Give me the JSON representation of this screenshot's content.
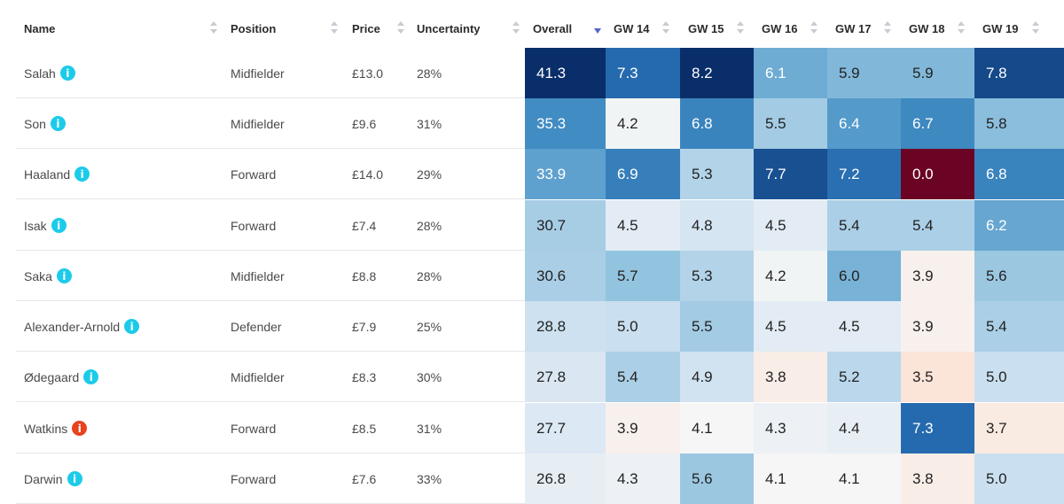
{
  "colors": {
    "info_ok": "#1ccbea",
    "info_alert": "#e8421e",
    "sort_active": "#5566cc"
  },
  "columns": {
    "name": "Name",
    "position": "Position",
    "price": "Price",
    "uncertainty": "Uncertainty",
    "overall": "Overall",
    "gw14": "GW 14",
    "gw15": "GW 15",
    "gw16": "GW 16",
    "gw17": "GW 17",
    "gw18": "GW 18",
    "gw19": "GW 19"
  },
  "sort": {
    "column": "overall",
    "direction": "descending"
  },
  "rows": [
    {
      "name": "Salah",
      "info": "i",
      "status": "ok",
      "position": "Midfielder",
      "price": "£13.0",
      "uncertainty": "28%",
      "overall": "41.3",
      "gw": [
        "7.3",
        "8.2",
        "6.1",
        "5.9",
        "5.9",
        "7.8"
      ]
    },
    {
      "name": "Son",
      "info": "i",
      "status": "ok",
      "position": "Midfielder",
      "price": "£9.6",
      "uncertainty": "31%",
      "overall": "35.3",
      "gw": [
        "4.2",
        "6.8",
        "5.5",
        "6.4",
        "6.7",
        "5.8"
      ]
    },
    {
      "name": "Haaland",
      "info": "i",
      "status": "ok",
      "position": "Forward",
      "price": "£14.0",
      "uncertainty": "29%",
      "overall": "33.9",
      "gw": [
        "6.9",
        "5.3",
        "7.7",
        "7.2",
        "0.0",
        "6.8"
      ]
    },
    {
      "name": "Isak",
      "info": "i",
      "status": "ok",
      "position": "Forward",
      "price": "£7.4",
      "uncertainty": "28%",
      "overall": "30.7",
      "gw": [
        "4.5",
        "4.8",
        "4.5",
        "5.4",
        "5.4",
        "6.2"
      ]
    },
    {
      "name": "Saka",
      "info": "i",
      "status": "ok",
      "position": "Midfielder",
      "price": "£8.8",
      "uncertainty": "28%",
      "overall": "30.6",
      "gw": [
        "5.7",
        "5.3",
        "4.2",
        "6.0",
        "3.9",
        "5.6"
      ]
    },
    {
      "name": "Alexander-Arnold",
      "info": "i",
      "status": "ok",
      "position": "Defender",
      "price": "£7.9",
      "uncertainty": "25%",
      "overall": "28.8",
      "gw": [
        "5.0",
        "5.5",
        "4.5",
        "4.5",
        "3.9",
        "5.4"
      ]
    },
    {
      "name": "Ødegaard",
      "info": "i",
      "status": "ok",
      "position": "Midfielder",
      "price": "£8.3",
      "uncertainty": "30%",
      "overall": "27.8",
      "gw": [
        "5.4",
        "4.9",
        "3.8",
        "5.2",
        "3.5",
        "5.0"
      ]
    },
    {
      "name": "Watkins",
      "info": "i",
      "status": "alert",
      "position": "Forward",
      "price": "£8.5",
      "uncertainty": "31%",
      "overall": "27.7",
      "gw": [
        "3.9",
        "4.1",
        "4.3",
        "4.4",
        "7.3",
        "3.7"
      ]
    },
    {
      "name": "Darwin",
      "info": "i",
      "status": "ok",
      "position": "Forward",
      "price": "£7.6",
      "uncertainty": "33%",
      "overall": "26.8",
      "gw": [
        "4.3",
        "5.6",
        "4.1",
        "4.1",
        "3.8",
        "5.0"
      ]
    }
  ]
}
